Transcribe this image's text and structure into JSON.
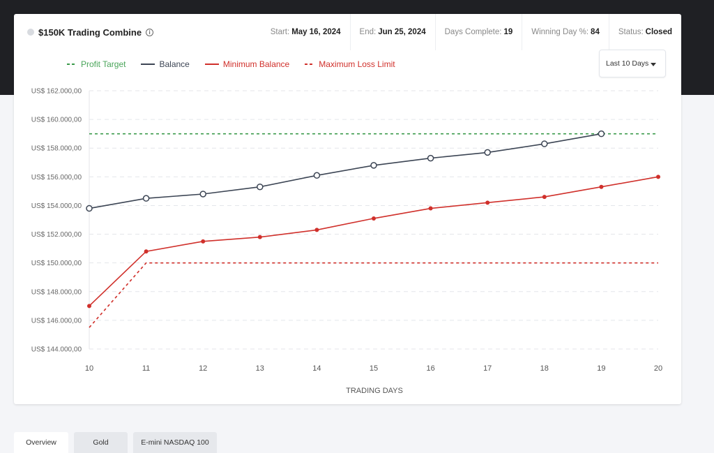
{
  "header": {
    "title": "$150K Trading Combine",
    "stats": [
      {
        "label": "Start:",
        "value": "May 16, 2024"
      },
      {
        "label": "End:",
        "value": "Jun 25, 2024"
      },
      {
        "label": "Days Complete:",
        "value": "19"
      },
      {
        "label": "Winning Day %:",
        "value": "84"
      },
      {
        "label": "Status:",
        "value": "Closed"
      }
    ]
  },
  "legend": [
    {
      "label": "Profit Target",
      "color": "#3a9a4a",
      "style": "dashed"
    },
    {
      "label": "Balance",
      "color": "#3c4554",
      "style": "solid"
    },
    {
      "label": "Minimum Balance",
      "color": "#d0302b",
      "style": "solid"
    },
    {
      "label": "Maximum Loss Limit",
      "color": "#d0302b",
      "style": "dashed"
    }
  ],
  "range_select": {
    "value": "Last 10 Days"
  },
  "tabs": [
    {
      "label": "Overview",
      "active": true
    },
    {
      "label": "Gold",
      "active": false
    },
    {
      "label": "E-mini NASDAQ 100",
      "active": false
    }
  ],
  "chart_data": {
    "type": "line",
    "title": "",
    "xlabel": "TRADING DAYS",
    "ylabel": "",
    "x": [
      10,
      11,
      12,
      13,
      14,
      15,
      16,
      17,
      18,
      19,
      20
    ],
    "ylim": [
      144000,
      162000
    ],
    "yticks": [
      144000,
      146000,
      148000,
      150000,
      152000,
      154000,
      156000,
      158000,
      160000,
      162000
    ],
    "ytick_labels": [
      "US$ 144.000,00",
      "US$ 146.000,00",
      "US$ 148.000,00",
      "US$ 150.000,00",
      "US$ 152.000,00",
      "US$ 154.000,00",
      "US$ 156.000,00",
      "US$ 158.000,00",
      "US$ 160.000,00",
      "US$ 162.000,00"
    ],
    "grid": true,
    "legend_position": "top",
    "series": [
      {
        "name": "Profit Target",
        "color": "#3a9a4a",
        "dashed": true,
        "markers": "none",
        "values": [
          159000,
          159000,
          159000,
          159000,
          159000,
          159000,
          159000,
          159000,
          159000,
          159000,
          159000
        ]
      },
      {
        "name": "Balance",
        "color": "#3c4554",
        "dashed": false,
        "markers": "hollow-circle",
        "values": [
          153800,
          154500,
          154800,
          155300,
          156100,
          156800,
          157300,
          157700,
          158300,
          159000,
          null
        ]
      },
      {
        "name": "Minimum Balance",
        "color": "#d0302b",
        "dashed": false,
        "markers": "filled-dot",
        "values": [
          147000,
          150800,
          151500,
          151800,
          152300,
          153100,
          153800,
          154200,
          154600,
          155300,
          156000
        ]
      },
      {
        "name": "Maximum Loss Limit",
        "color": "#d0302b",
        "dashed": true,
        "markers": "none",
        "values": [
          145500,
          150000,
          150000,
          150000,
          150000,
          150000,
          150000,
          150000,
          150000,
          150000,
          150000
        ]
      }
    ]
  }
}
